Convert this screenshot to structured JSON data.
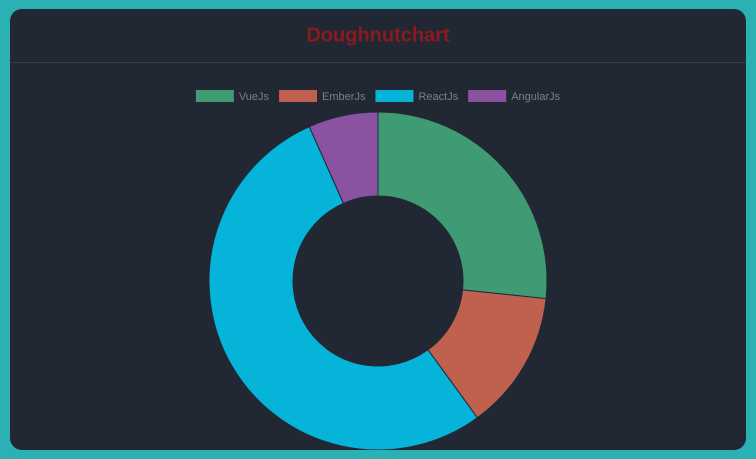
{
  "chart_data": {
    "type": "doughnut",
    "title": "Doughnutchart",
    "categories": [
      "VueJs",
      "EmberJs",
      "ReactJs",
      "AngularJs"
    ],
    "values": [
      4,
      2,
      8,
      1
    ],
    "colors": [
      "#3e9b74",
      "#c0604e",
      "#05b4d8",
      "#8a52a0"
    ],
    "legend": "top"
  }
}
